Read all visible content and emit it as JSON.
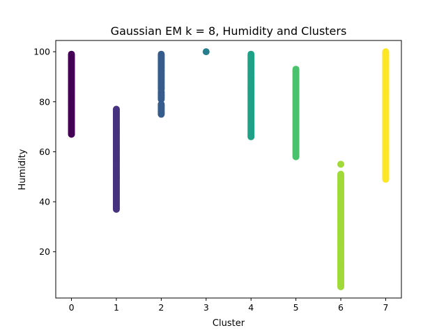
{
  "chart_data": {
    "type": "scatter",
    "title": "Gaussian EM k = 8, Humidity and Clusters",
    "xlabel": "Cluster",
    "ylabel": "Humidity",
    "xlim": [
      -0.35,
      7.35
    ],
    "ylim": [
      1.5,
      104.5
    ],
    "xticks": [
      0,
      1,
      2,
      3,
      4,
      5,
      6,
      7
    ],
    "yticks": [
      20,
      40,
      60,
      80,
      100
    ],
    "grid": false,
    "legend": "none",
    "series": [
      {
        "x": 0,
        "ymin": 67,
        "ymax": 99,
        "color": "#440154"
      },
      {
        "x": 1,
        "ymin": 37,
        "ymax": 77,
        "color": "#46327e"
      },
      {
        "x": 2,
        "ymin": 75,
        "ymax": 99,
        "color": "#365c8d",
        "gaps": [
          [
            79,
            81
          ],
          [
            84,
            85
          ]
        ]
      },
      {
        "x": 3,
        "ymin": 100,
        "ymax": 100,
        "color": "#277f8e"
      },
      {
        "x": 4,
        "ymin": 66,
        "ymax": 99,
        "color": "#1fa187"
      },
      {
        "x": 5,
        "ymin": 58,
        "ymax": 93,
        "color": "#4ac16d"
      },
      {
        "x": 6,
        "ymin": 6,
        "ymax": 51,
        "color": "#a0da39",
        "outliers": [
          55
        ]
      },
      {
        "x": 7,
        "ymin": 49,
        "ymax": 100,
        "color": "#fde725"
      }
    ]
  }
}
